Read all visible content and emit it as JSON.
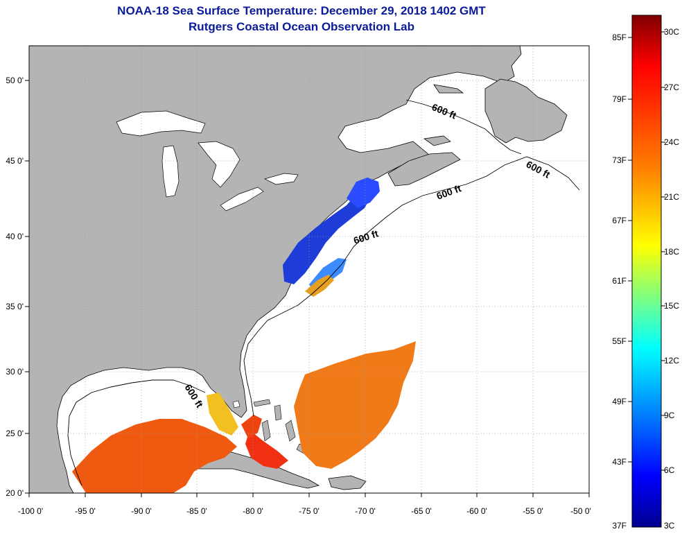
{
  "title": "NOAA-18 Sea Surface Temperature:  December 29, 2018 1402 GMT",
  "subtitle": "Rutgers Coastal Ocean Observation Lab",
  "map": {
    "lon_ticks": [
      "-100 0'",
      "-95 0'",
      "-90 0'",
      "-85 0'",
      "-80 0'",
      "-75 0'",
      "-70 0'",
      "-65 0'",
      "-60 0'",
      "-55 0'",
      "-50 0'"
    ],
    "lat_ticks": [
      "50 0'",
      "45 0'",
      "40 0'",
      "35 0'",
      "30 0'",
      "25 0'",
      "20 0'"
    ],
    "isobath_labels": [
      "600 ft",
      "600 ft",
      "600 ft",
      "600 ft",
      "600 ft"
    ],
    "colors": {
      "land": "#b4b4b4",
      "ocean": "#ffffff",
      "coast": "#000000",
      "grid": "#9a9a9a"
    }
  },
  "colorbar": {
    "fahrenheit_labels": [
      "85F",
      "79F",
      "73F",
      "67F",
      "61F",
      "55F",
      "49F",
      "43F",
      "37F"
    ],
    "celsius_labels": [
      "30C",
      "27C",
      "24C",
      "21C",
      "18C",
      "15C",
      "12C",
      "9C",
      "6C",
      "3C"
    ],
    "colors": [
      "#7f0000",
      "#ff0000",
      "#ff8000",
      "#ffff00",
      "#80ff80",
      "#00ffff",
      "#0080ff",
      "#0000ff",
      "#00008f"
    ]
  }
}
